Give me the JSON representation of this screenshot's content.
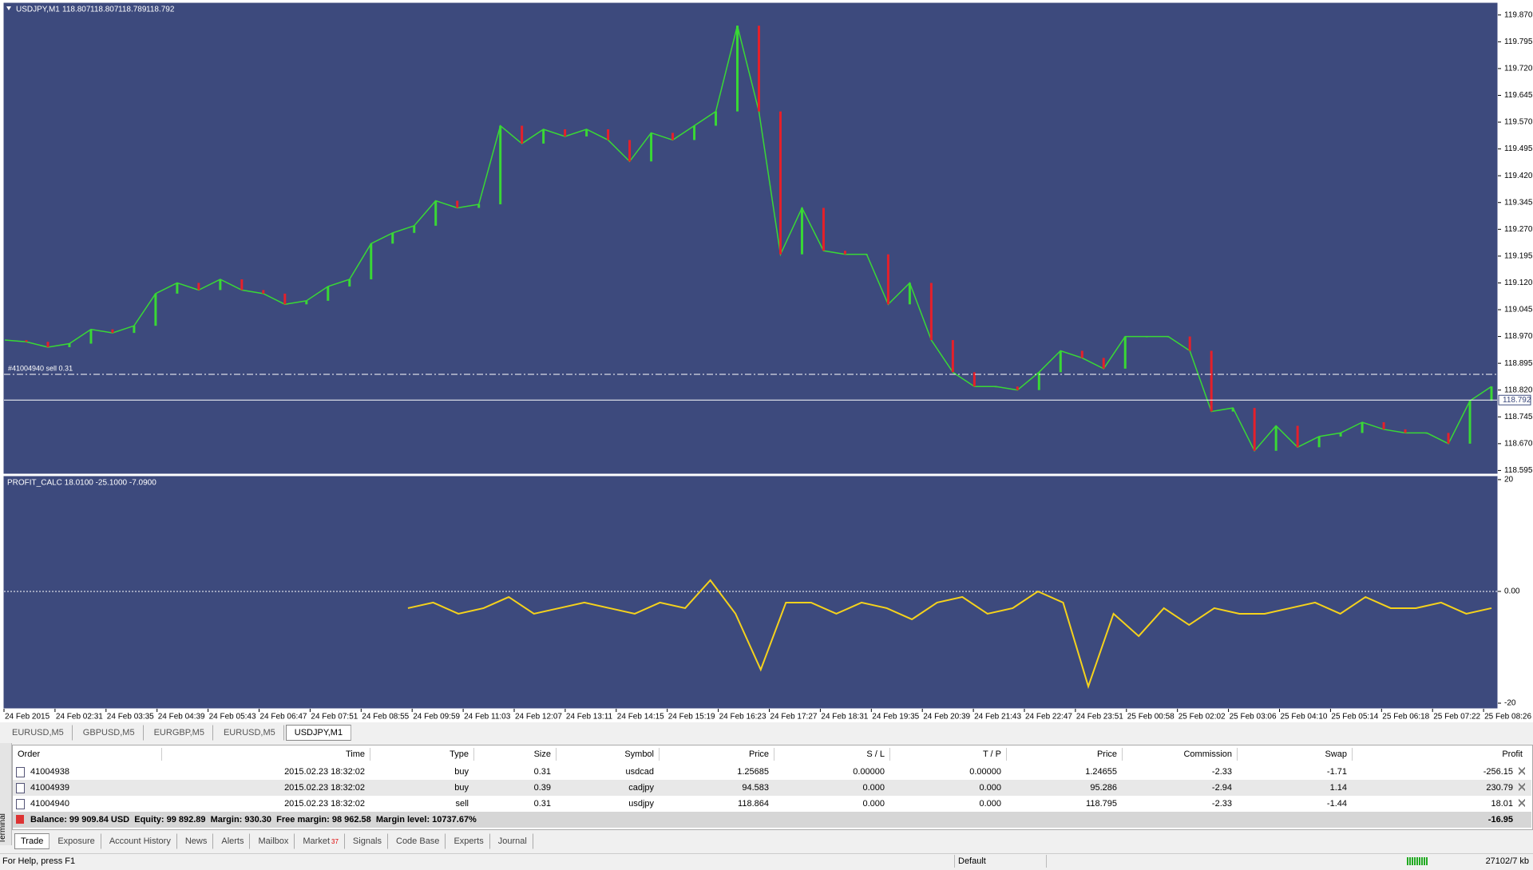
{
  "chart_header": {
    "symbol": "USDJPY,M1",
    "open": "118.807",
    "high": "118.807",
    "low": "118.789",
    "close": "118.792"
  },
  "price_chart": {
    "type": "line",
    "values": [
      118.96,
      118.955,
      118.94,
      118.95,
      118.99,
      118.98,
      119.0,
      119.09,
      119.12,
      119.1,
      119.13,
      119.1,
      119.09,
      119.06,
      119.07,
      119.11,
      119.13,
      119.23,
      119.26,
      119.28,
      119.35,
      119.33,
      119.34,
      119.56,
      119.51,
      119.55,
      119.53,
      119.55,
      119.52,
      119.46,
      119.54,
      119.52,
      119.56,
      119.6,
      119.84,
      119.6,
      119.2,
      119.33,
      119.21,
      119.2,
      119.2,
      119.06,
      119.12,
      118.96,
      118.87,
      118.83,
      118.83,
      118.82,
      118.87,
      118.93,
      118.91,
      118.88,
      118.97,
      118.97,
      118.97,
      118.93,
      118.76,
      118.77,
      118.65,
      118.72,
      118.66,
      118.69,
      118.7,
      118.73,
      118.71,
      118.7,
      118.7,
      118.67,
      118.79,
      118.83
    ],
    "up_color": "#39d835",
    "down_color": "#e5202a",
    "ylim": [
      118.587,
      119.903
    ],
    "yticks": [
      {
        "value": 119.87,
        "label": "119.870"
      },
      119.795,
      {
        "value": 119.72,
        "label": "119.720"
      },
      119.645,
      {
        "value": 119.57,
        "label": "119.570"
      },
      119.495,
      {
        "value": 119.42,
        "label": "119.420"
      },
      119.345,
      {
        "value": 119.27,
        "label": "119.270"
      },
      119.195,
      {
        "value": 119.12,
        "label": "119.120"
      },
      119.045,
      {
        "value": 118.97,
        "label": "118.970"
      },
      118.895,
      {
        "value": 118.82,
        "label": "118.820"
      },
      118.745,
      {
        "value": 118.67,
        "label": "118.670"
      },
      118.595
    ],
    "order_label": "#41004940 sell 0.31"
  },
  "indicator": {
    "type": "line",
    "title": "PROFIT_CALC 18.0100 -25.1000 -7.0900",
    "color": "#f5d21c",
    "values": [
      null,
      null,
      null,
      null,
      null,
      null,
      null,
      null,
      null,
      null,
      null,
      null,
      null,
      null,
      null,
      null,
      -3,
      -2,
      -4,
      -3,
      -1,
      -4,
      -3,
      -2,
      -3,
      -4,
      -2,
      -3,
      2,
      -4,
      -14,
      -2,
      -2,
      -4,
      -2,
      -3,
      -5,
      -2,
      -1,
      -4,
      -3,
      0,
      -2,
      -17,
      -4,
      -8,
      -3,
      -6,
      -3,
      -4,
      -4,
      -3,
      -2,
      -4,
      -1,
      -3,
      -3,
      -2,
      -4,
      -3
    ],
    "ylim": [
      -21,
      20.7
    ],
    "yticks": [
      20,
      {
        "value": 0,
        "label": "0.00"
      },
      -20
    ]
  },
  "time_labels": [
    "24 Feb 2015",
    "24 Feb 02:31",
    "24 Feb 03:35",
    "24 Feb 04:39",
    "24 Feb 05:43",
    "24 Feb 06:47",
    "24 Feb 07:51",
    "24 Feb 08:55",
    "24 Feb 09:59",
    "24 Feb 11:03",
    "24 Feb 12:07",
    "24 Feb 13:11",
    "24 Feb 14:15",
    "24 Feb 15:19",
    "24 Feb 16:23",
    "24 Feb 17:27",
    "24 Feb 18:31",
    "24 Feb 19:35",
    "24 Feb 20:39",
    "24 Feb 21:43",
    "24 Feb 22:47",
    "24 Feb 23:51",
    "25 Feb 00:58",
    "25 Feb 02:02",
    "25 Feb 03:06",
    "25 Feb 04:10",
    "25 Feb 05:14",
    "25 Feb 06:18",
    "25 Feb 07:22",
    "25 Feb 08:26"
  ],
  "chart_tabs": [
    "EURUSD,M5",
    "GBPUSD,M5",
    "EURGBP,M5",
    "EURUSD,M5",
    "USDJPY,M1"
  ],
  "terminal": {
    "side_label": "Terminal",
    "columns": [
      "Order",
      "Time",
      "Type",
      "Size",
      "Symbol",
      "Price",
      "S / L",
      "T / P",
      "Price",
      "Commission",
      "Swap",
      "Profit"
    ],
    "rows": [
      [
        "41004938",
        "2015.02.23 18:32:02",
        "buy",
        "0.31",
        "usdcad",
        "1.25685",
        "0.00000",
        "0.00000",
        "1.24655",
        "-2.33",
        "-1.71",
        "-256.15"
      ],
      [
        "41004939",
        "2015.02.23 18:32:02",
        "buy",
        "0.39",
        "cadjpy",
        "94.583",
        "0.000",
        "0.000",
        "95.286",
        "-2.94",
        "1.14",
        "230.79"
      ],
      [
        "41004940",
        "2015.02.23 18:32:02",
        "sell",
        "0.31",
        "usdjpy",
        "118.864",
        "0.000",
        "0.000",
        "118.795",
        "-2.33",
        "-1.44",
        "18.01"
      ]
    ],
    "summary": "Balance: 99 909.84 USD  Equity: 99 892.89  Margin: 930.30  Free margin: 98 962.58  Margin level: 10737.67%",
    "total": "-16.95",
    "tabs": [
      "Trade",
      "Exposure",
      "Account History",
      "News",
      "Alerts",
      "Mailbox",
      "Market",
      "Signals",
      "Code Base",
      "Experts",
      "Journal"
    ],
    "market_badge": "37"
  },
  "status": {
    "help": "For Help, press F1",
    "profile": "Default",
    "traffic": "27102/7 kb"
  }
}
